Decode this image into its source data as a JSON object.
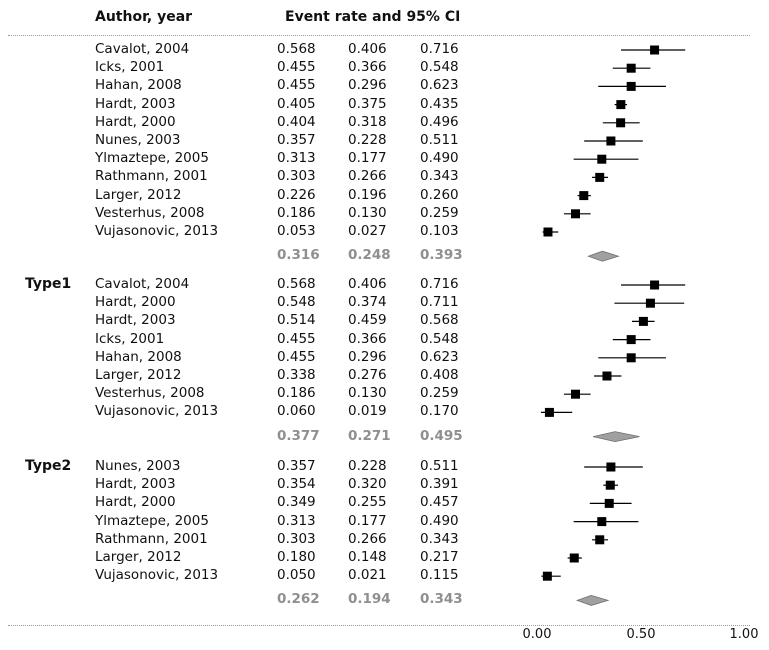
{
  "header": {
    "author_label": "Author, year",
    "ci_label": "Event rate and 95% CI"
  },
  "chart_data": {
    "type": "forest",
    "xlim": [
      0,
      1
    ],
    "x_ticks": [
      "0.00",
      "0.50",
      "1.00"
    ],
    "groups": [
      {
        "label": "",
        "studies": [
          {
            "name": "Cavalot, 2004",
            "rate": "0.568",
            "lower": "0.406",
            "upper": "0.716"
          },
          {
            "name": "Icks, 2001",
            "rate": "0.455",
            "lower": "0.366",
            "upper": "0.548"
          },
          {
            "name": "Hahan, 2008",
            "rate": "0.455",
            "lower": "0.296",
            "upper": "0.623"
          },
          {
            "name": "Hardt, 2003",
            "rate": "0.405",
            "lower": "0.375",
            "upper": "0.435"
          },
          {
            "name": "Hardt, 2000",
            "rate": "0.404",
            "lower": "0.318",
            "upper": "0.496"
          },
          {
            "name": "Nunes, 2003",
            "rate": "0.357",
            "lower": "0.228",
            "upper": "0.511"
          },
          {
            "name": "Ylmaztepe, 2005",
            "rate": "0.313",
            "lower": "0.177",
            "upper": "0.490"
          },
          {
            "name": "Rathmann, 2001",
            "rate": "0.303",
            "lower": "0.266",
            "upper": "0.343"
          },
          {
            "name": "Larger, 2012",
            "rate": "0.226",
            "lower": "0.196",
            "upper": "0.260"
          },
          {
            "name": "Vesterhus, 2008",
            "rate": "0.186",
            "lower": "0.130",
            "upper": "0.259"
          },
          {
            "name": "Vujasonovic, 2013",
            "rate": "0.053",
            "lower": "0.027",
            "upper": "0.103"
          }
        ],
        "summary": {
          "rate": "0.316",
          "lower": "0.248",
          "upper": "0.393"
        }
      },
      {
        "label": "Type1",
        "studies": [
          {
            "name": "Cavalot, 2004",
            "rate": "0.568",
            "lower": "0.406",
            "upper": "0.716"
          },
          {
            "name": "Hardt, 2000",
            "rate": "0.548",
            "lower": "0.374",
            "upper": "0.711"
          },
          {
            "name": "Hardt, 2003",
            "rate": "0.514",
            "lower": "0.459",
            "upper": "0.568"
          },
          {
            "name": "Icks, 2001",
            "rate": "0.455",
            "lower": "0.366",
            "upper": "0.548"
          },
          {
            "name": "Hahan, 2008",
            "rate": "0.455",
            "lower": "0.296",
            "upper": "0.623"
          },
          {
            "name": "Larger, 2012",
            "rate": "0.338",
            "lower": "0.276",
            "upper": "0.408"
          },
          {
            "name": "Vesterhus, 2008",
            "rate": "0.186",
            "lower": "0.130",
            "upper": "0.259"
          },
          {
            "name": "Vujasonovic, 2013",
            "rate": "0.060",
            "lower": "0.019",
            "upper": "0.170"
          }
        ],
        "summary": {
          "rate": "0.377",
          "lower": "0.271",
          "upper": "0.495"
        }
      },
      {
        "label": "Type2",
        "studies": [
          {
            "name": "Nunes, 2003",
            "rate": "0.357",
            "lower": "0.228",
            "upper": "0.511"
          },
          {
            "name": "Hardt, 2003",
            "rate": "0.354",
            "lower": "0.320",
            "upper": "0.391"
          },
          {
            "name": "Hardt, 2000",
            "rate": "0.349",
            "lower": "0.255",
            "upper": "0.457"
          },
          {
            "name": "Ylmaztepe, 2005",
            "rate": "0.313",
            "lower": "0.177",
            "upper": "0.490"
          },
          {
            "name": "Rathmann, 2001",
            "rate": "0.303",
            "lower": "0.266",
            "upper": "0.343"
          },
          {
            "name": "Larger, 2012",
            "rate": "0.180",
            "lower": "0.148",
            "upper": "0.217"
          },
          {
            "name": "Vujasonovic, 2013",
            "rate": "0.050",
            "lower": "0.021",
            "upper": "0.115"
          }
        ],
        "summary": {
          "rate": "0.262",
          "lower": "0.194",
          "upper": "0.343"
        }
      }
    ],
    "colors": {
      "marker": "#000000",
      "summary_fill": "#a0a0a0",
      "summary_text": "#8f8f8f"
    }
  }
}
